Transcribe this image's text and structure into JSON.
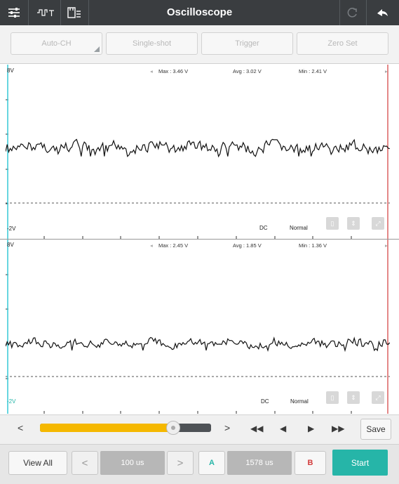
{
  "header": {
    "title": "Oscilloscope"
  },
  "toolbar": {
    "auto_ch": "Auto-CH",
    "single_shot": "Single-shot",
    "trigger": "Trigger",
    "zero_set": "Zero Set"
  },
  "channel1": {
    "top_label": "8V",
    "bottom_label": "-2V",
    "max": "Max : 3.46 V",
    "avg": "Avg : 3.02 V",
    "min": "Min : 2.41 V",
    "coupling": "DC",
    "mode": "Normal"
  },
  "channel2": {
    "top_label": "8V",
    "bottom_label": "-2V",
    "max": "Max : 2.45 V",
    "avg": "Avg : 1.85 V",
    "min": "Min : 1.36 V",
    "coupling": "DC",
    "mode": "Normal"
  },
  "controls": {
    "slider_level": 0.78,
    "save": "Save"
  },
  "bottom": {
    "view_all": "View All",
    "timebase": "100 us",
    "cursor_a": "A",
    "delta": "1578 us",
    "cursor_b": "B",
    "start": "Start"
  },
  "colors": {
    "accent": "#26b5a8",
    "slider": "#f5b800",
    "cursor_a_line": "#35c8d6",
    "cursor_b_line": "#d23a3a"
  }
}
